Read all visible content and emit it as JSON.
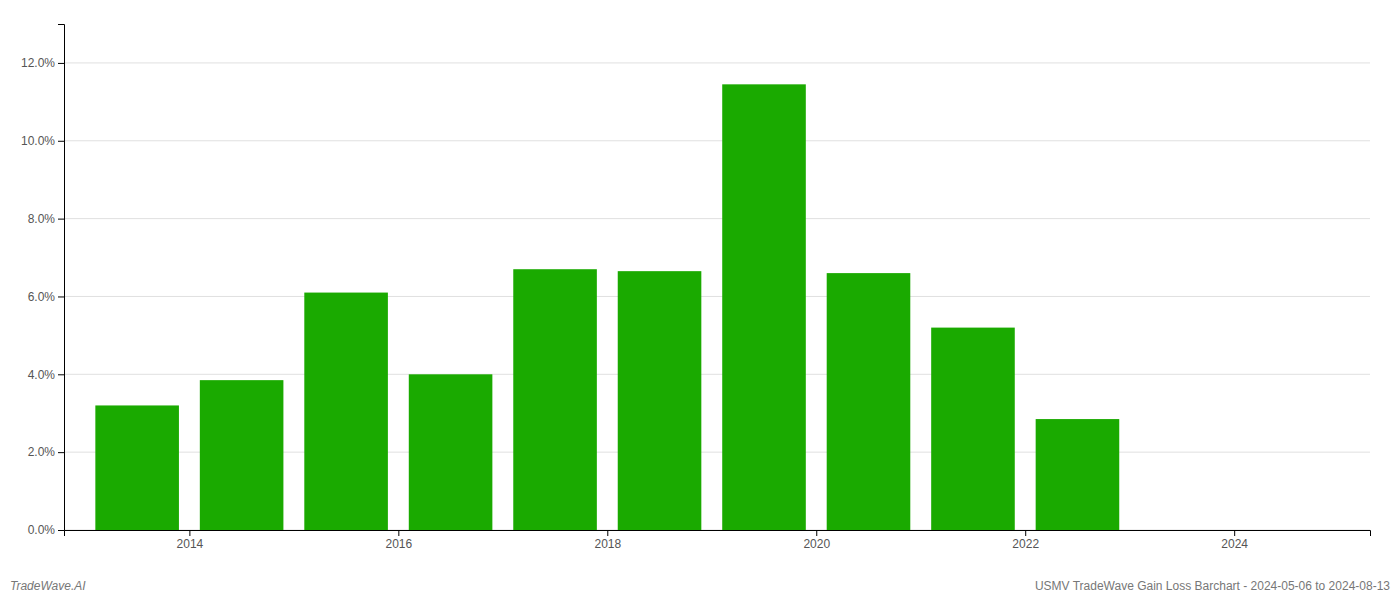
{
  "chart_data": {
    "type": "bar",
    "x": [
      2013,
      2014,
      2015,
      2016,
      2017,
      2018,
      2019,
      2020,
      2021,
      2022
    ],
    "values": [
      0.032,
      0.0385,
      0.061,
      0.04,
      0.067,
      0.0665,
      0.1145,
      0.066,
      0.052,
      0.0285
    ],
    "color": "#1aaa00",
    "xlim": [
      2012.3,
      2024.8
    ],
    "xticks": [
      {
        "value": 2013.5,
        "label": "2014"
      },
      {
        "value": 2015.5,
        "label": "2016"
      },
      {
        "value": 2017.5,
        "label": "2018"
      },
      {
        "value": 2019.5,
        "label": "2020"
      },
      {
        "value": 2021.5,
        "label": "2022"
      },
      {
        "value": 2023.5,
        "label": "2024"
      }
    ],
    "ylim": [
      0,
      0.13
    ],
    "yticks": [
      {
        "value": 0.0,
        "label": "0.0%"
      },
      {
        "value": 0.02,
        "label": "2.0%"
      },
      {
        "value": 0.04,
        "label": "4.0%"
      },
      {
        "value": 0.06,
        "label": "6.0%"
      },
      {
        "value": 0.08,
        "label": "8.0%"
      },
      {
        "value": 0.1,
        "label": "10.0%"
      },
      {
        "value": 0.12,
        "label": "12.0%"
      }
    ],
    "grid": true,
    "annotations": [
      "TradeWave.AI",
      "USMV TradeWave Gain Loss Barchart - 2024-05-06 to 2024-08-13"
    ]
  }
}
